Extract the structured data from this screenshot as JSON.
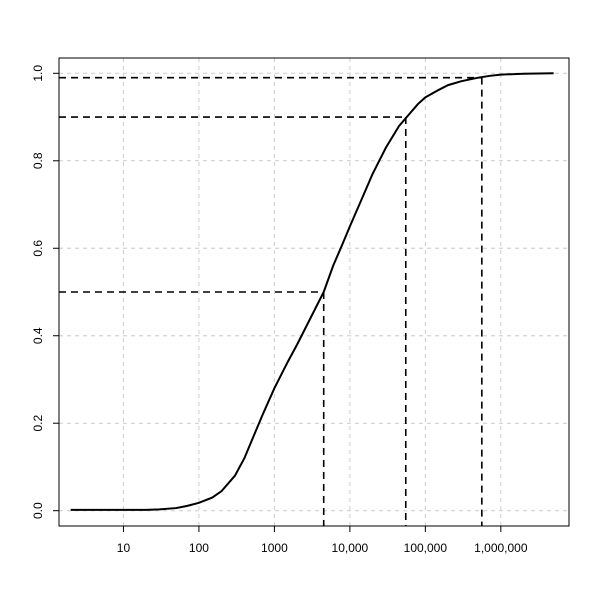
{
  "chart_data": {
    "type": "line",
    "title": "",
    "xlabel": "",
    "ylabel": "",
    "x_scale": "log10",
    "xlim": [
      1.4,
      8000000
    ],
    "ylim": [
      -0.035,
      1.035
    ],
    "grid": true,
    "x_ticks": [
      {
        "value": 10,
        "label": "10"
      },
      {
        "value": 100,
        "label": "100"
      },
      {
        "value": 1000,
        "label": "1000"
      },
      {
        "value": 10000,
        "label": "10,000"
      },
      {
        "value": 100000,
        "label": "100,000"
      },
      {
        "value": 1000000,
        "label": "1,000,000"
      }
    ],
    "y_ticks": [
      {
        "value": 0.0,
        "label": "0.0"
      },
      {
        "value": 0.2,
        "label": "0.2"
      },
      {
        "value": 0.4,
        "label": "0.4"
      },
      {
        "value": 0.6,
        "label": "0.6"
      },
      {
        "value": 0.8,
        "label": "0.8"
      },
      {
        "value": 1.0,
        "label": "1.0"
      }
    ],
    "series": [
      {
        "x": [
          2,
          5,
          10,
          20,
          30,
          50,
          70,
          100,
          150,
          200,
          300,
          400,
          500,
          700,
          1000,
          1500,
          2000,
          3000,
          4500,
          6000,
          8000,
          10000,
          15000,
          20000,
          30000,
          45000,
          60000,
          80000,
          100000,
          150000,
          200000,
          300000,
          500000,
          700000,
          1000000,
          2000000,
          5000000
        ],
        "y": [
          0.002,
          0.002,
          0.002,
          0.002,
          0.003,
          0.006,
          0.011,
          0.018,
          0.03,
          0.045,
          0.08,
          0.12,
          0.16,
          0.22,
          0.28,
          0.34,
          0.38,
          0.44,
          0.5,
          0.56,
          0.61,
          0.65,
          0.72,
          0.77,
          0.83,
          0.88,
          0.905,
          0.93,
          0.945,
          0.962,
          0.973,
          0.982,
          0.99,
          0.994,
          0.997,
          0.999,
          1.0
        ]
      }
    ],
    "reference_lines": [
      {
        "x": 4500,
        "y": 0.5
      },
      {
        "x": 55000,
        "y": 0.9
      },
      {
        "x": 560000,
        "y": 0.99
      }
    ]
  }
}
